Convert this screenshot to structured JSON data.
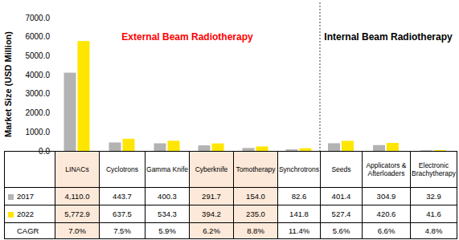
{
  "chart_data": {
    "type": "bar",
    "y_label": "Market Size (USD Million)",
    "categories": [
      "LINACs",
      "Cyclotrons",
      "Gamma Knife",
      "Cyberknife",
      "Tomotherapy",
      "Synchrotrons",
      "Seeds",
      "Applicators & Afterloaders",
      "Electronic Brachytherapy"
    ],
    "series": [
      {
        "name": "2017",
        "color": "#b3b3b3",
        "values": [
          4110.0,
          443.7,
          400.3,
          291.7,
          154.0,
          82.6,
          401.4,
          304.9,
          32.9
        ],
        "value_labels": [
          "4,110.0",
          "443.7",
          "400.3",
          "291.7",
          "154.0",
          "82.6",
          "401.4",
          "304.9",
          "32.9"
        ]
      },
      {
        "name": "2022",
        "color": "#ffe600",
        "values": [
          5772.9,
          637.5,
          534.3,
          394.2,
          235.0,
          141.8,
          527.4,
          420.6,
          41.6
        ],
        "value_labels": [
          "5,772.9",
          "637.5",
          "534.3",
          "394.2",
          "235.0",
          "141.8",
          "527.4",
          "420.6",
          "41.6"
        ]
      }
    ],
    "cagr": {
      "name": "CAGR",
      "values": [
        7.0,
        7.5,
        5.9,
        6.2,
        8.8,
        11.4,
        5.6,
        6.6,
        4.8
      ],
      "value_labels": [
        "7.0%",
        "7.5%",
        "5.9%",
        "6.2%",
        "8.8%",
        "11.4%",
        "5.6%",
        "6.6%",
        "4.8%"
      ]
    },
    "annotations": [
      {
        "text": "External Beam Radiotherapy",
        "color": "#ff0000"
      },
      {
        "text": "Internal Beam Radiotherapy",
        "color": "#000000"
      }
    ],
    "ylim": [
      0,
      7000
    ],
    "yticks": [
      {
        "value": 0,
        "label": "0.0"
      },
      {
        "value": 1000,
        "label": "1000.0"
      },
      {
        "value": 2000,
        "label": "2000.0"
      },
      {
        "value": 3000,
        "label": "3000.0"
      },
      {
        "value": 4000,
        "label": "4000.0"
      },
      {
        "value": 5000,
        "label": "5000.0"
      },
      {
        "value": 6000,
        "label": "6000.0"
      },
      {
        "value": 7000,
        "label": "7000.0"
      }
    ],
    "grid": false,
    "data_labels": false
  }
}
